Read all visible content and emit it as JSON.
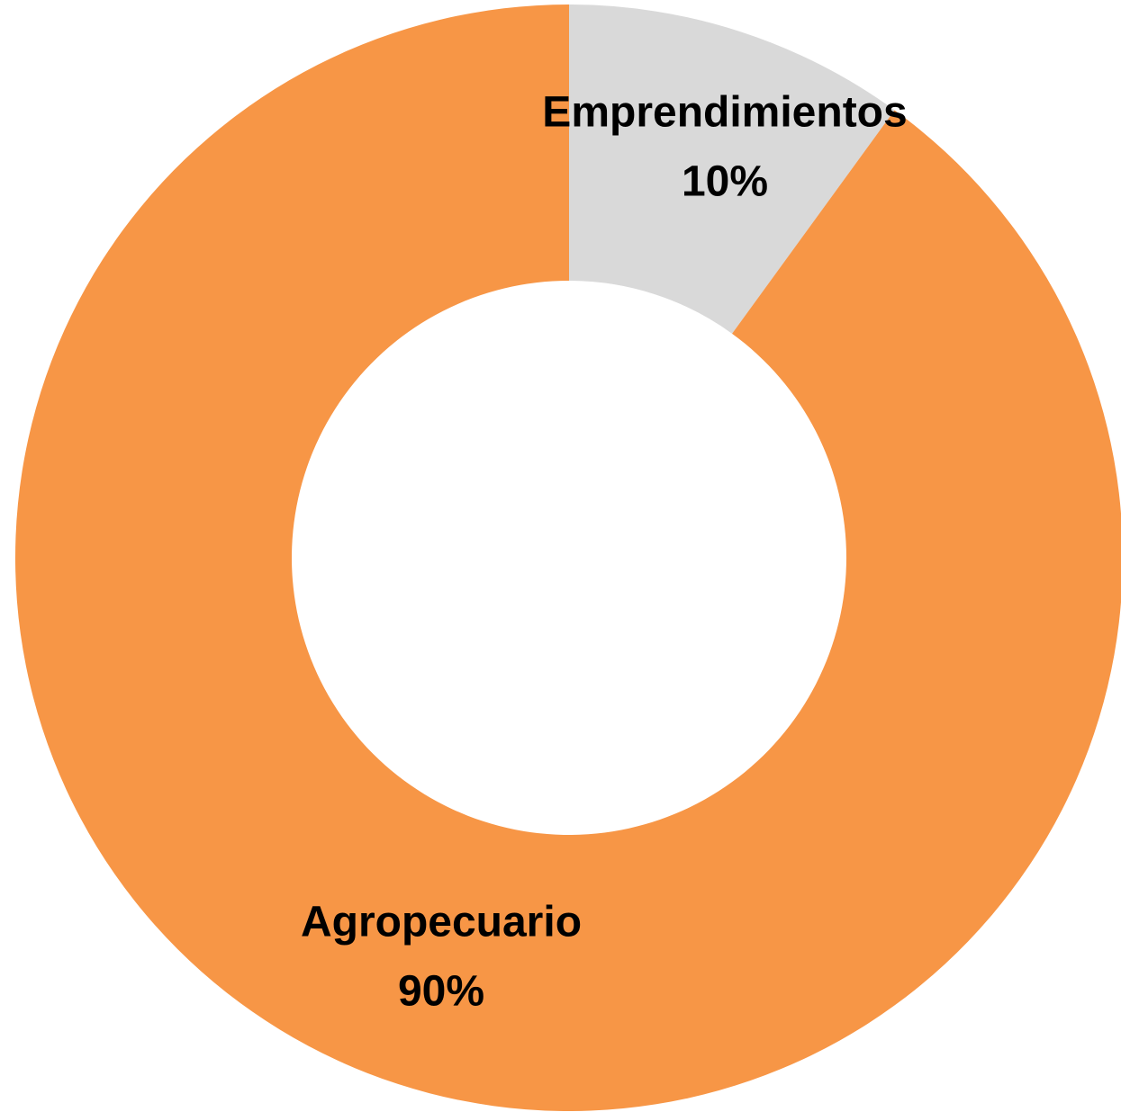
{
  "chart_data": {
    "type": "donut",
    "categories": [
      "Emprendimientos",
      "Agropecuario"
    ],
    "values": [
      10,
      90
    ],
    "value_labels": [
      "10%",
      "90%"
    ],
    "colors": [
      "#d9d9d9",
      "#f79646"
    ]
  }
}
